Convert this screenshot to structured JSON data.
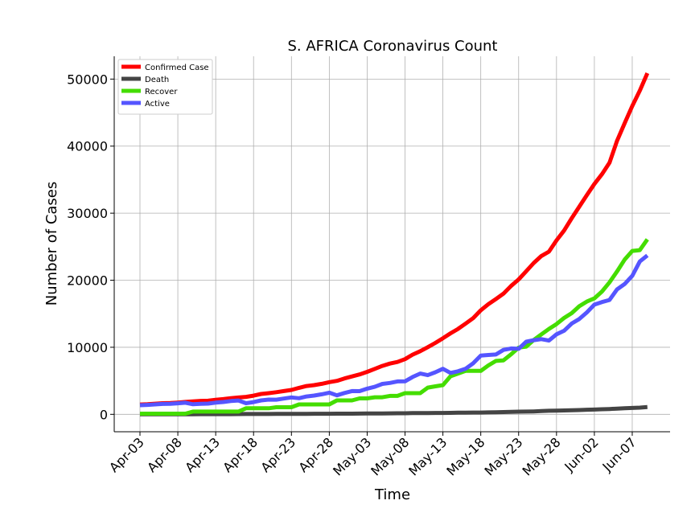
{
  "chart_data": {
    "type": "line",
    "title": "S. AFRICA Coronavirus Count",
    "x_label": "Time",
    "y_label": "Number of Cases",
    "categories": [
      "Apr-03",
      null,
      null,
      null,
      null,
      "Apr-08",
      null,
      null,
      null,
      null,
      "Apr-13",
      null,
      null,
      null,
      null,
      "Apr-18",
      null,
      null,
      null,
      null,
      "Apr-23",
      null,
      null,
      null,
      null,
      "Apr-28",
      null,
      null,
      null,
      null,
      "May-03",
      null,
      null,
      null,
      null,
      "May-08",
      null,
      null,
      null,
      null,
      "May-13",
      null,
      null,
      null,
      null,
      "May-18",
      null,
      null,
      null,
      null,
      "May-23",
      null,
      null,
      null,
      null,
      "May-28",
      null,
      null,
      null,
      null,
      "Jun-02",
      null,
      null,
      null,
      null,
      "Jun-07",
      null,
      null
    ],
    "series": [
      {
        "name": "Confirmed Case",
        "color": "#ff0000",
        "values": [
          1462,
          1505,
          1585,
          1655,
          1686,
          1749,
          1845,
          1934,
          2003,
          2028,
          2173,
          2272,
          2415,
          2506,
          2605,
          2783,
          3034,
          3158,
          3300,
          3465,
          3635,
          3953,
          4220,
          4361,
          4546,
          4793,
          4996,
          5350,
          5647,
          5951,
          6336,
          6783,
          7220,
          7572,
          7808,
          8232,
          8895,
          9420,
          10015,
          10652,
          11350,
          12074,
          12739,
          13524,
          14355,
          15515,
          16433,
          17200,
          18003,
          19137,
          20125,
          21343,
          22583,
          23615,
          24264,
          25937,
          27403,
          29240,
          30967,
          32683,
          34357,
          35812,
          37525,
          40792,
          43434,
          45973,
          48285,
          50879
        ]
      },
      {
        "name": "Death",
        "color": "#444444",
        "values": [
          5,
          9,
          9,
          11,
          12,
          13,
          18,
          18,
          24,
          25,
          25,
          27,
          27,
          34,
          48,
          50,
          52,
          54,
          58,
          58,
          65,
          75,
          79,
          86,
          87,
          90,
          93,
          103,
          103,
          116,
          123,
          131,
          138,
          148,
          153,
          161,
          178,
          186,
          194,
          206,
          206,
          219,
          238,
          247,
          261,
          264,
          286,
          312,
          339,
          369,
          397,
          407,
          429,
          481,
          524,
          552,
          577,
          611,
          643,
          683,
          705,
          755,
          792,
          848,
          908,
          952,
          998,
          1080
        ]
      },
      {
        "name": "Recover",
        "color": "#44dd00",
        "values": [
          95,
          95,
          95,
          95,
          95,
          95,
          95,
          410,
          410,
          410,
          410,
          410,
          410,
          410,
          903,
          903,
          903,
          903,
          1055,
          1055,
          1055,
          1473,
          1473,
          1473,
          1473,
          1473,
          2073,
          2073,
          2073,
          2382,
          2382,
          2549,
          2549,
          2746,
          2746,
          3153,
          3153,
          3153,
          3983,
          4173,
          4357,
          5676,
          6083,
          6478,
          6478,
          6478,
          7298,
          7960,
          8051,
          8950,
          9955,
          10104,
          11100,
          11917,
          12741,
          13451,
          14370,
          15093,
          16116,
          16809,
          17291,
          18313,
          19682,
          21311,
          23088,
          24364,
          24491,
          26099
        ]
      },
      {
        "name": "Active",
        "color": "#5555ff",
        "values": [
          1362,
          1401,
          1481,
          1549,
          1579,
          1641,
          1732,
          1506,
          1569,
          1593,
          1738,
          1835,
          1978,
          2062,
          1654,
          1830,
          2079,
          2201,
          2187,
          2352,
          2515,
          2405,
          2668,
          2802,
          2986,
          3230,
          2830,
          3174,
          3471,
          3453,
          3831,
          4103,
          4533,
          4678,
          4909,
          4918,
          5564,
          6081,
          5838,
          6273,
          6787,
          6179,
          6418,
          6799,
          7616,
          8773,
          8849,
          8928,
          9613,
          9818,
          9773,
          10832,
          11054,
          11217,
          10999,
          11934,
          12456,
          13536,
          14208,
          15191,
          16361,
          16744,
          17051,
          18633,
          19438,
          20657,
          22796,
          23700
        ]
      }
    ],
    "ylim": [
      -2600,
      53400
    ],
    "yticks": [
      0,
      10000,
      20000,
      30000,
      40000,
      50000
    ],
    "grid": true,
    "legend": "upper left"
  }
}
